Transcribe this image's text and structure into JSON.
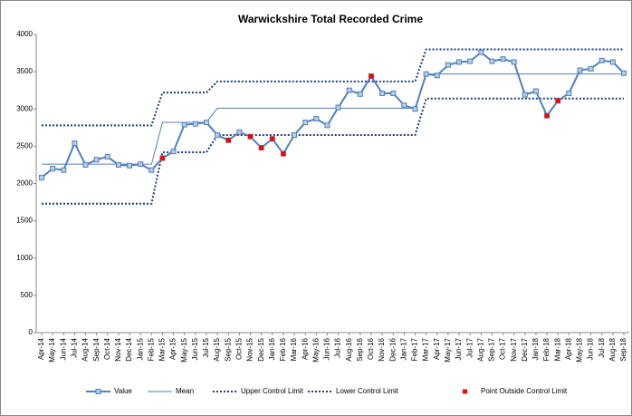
{
  "chart_data": {
    "type": "line",
    "title": "Warwickshire Total Recorded Crime",
    "categories": [
      "Apr-14",
      "May-14",
      "Jun-14",
      "Jul-14",
      "Aug-14",
      "Sep-14",
      "Oct-14",
      "Nov-14",
      "Dec-14",
      "Jan-15",
      "Feb-15",
      "Mar-15",
      "Apr-15",
      "May-15",
      "Jun-15",
      "Jul-15",
      "Aug-15",
      "Sep-15",
      "Oct-15",
      "Nov-15",
      "Dec-15",
      "Jan-16",
      "Feb-16",
      "Mar-16",
      "Apr-16",
      "May-16",
      "Jun-16",
      "Jul-16",
      "Aug-16",
      "Sep-16",
      "Oct-16",
      "Nov-16",
      "Dec-16",
      "Jan-17",
      "Feb-17",
      "Mar-17",
      "Apr-17",
      "May-17",
      "Jun-17",
      "Jul-17",
      "Aug-17",
      "Sep-17",
      "Oct-17",
      "Nov-17",
      "Dec-17",
      "Jan-18",
      "Feb-18",
      "Mar-18",
      "Apr-18",
      "May-18",
      "Jun-18",
      "Jul-18",
      "Aug-18",
      "Sep-18"
    ],
    "series": [
      {
        "name": "Value",
        "color": "#4f81bd",
        "values": [
          2080,
          2200,
          2180,
          2540,
          2250,
          2320,
          2360,
          2250,
          2240,
          2260,
          2180,
          2340,
          2430,
          2790,
          2800,
          2820,
          2650,
          2580,
          2690,
          2630,
          2480,
          2600,
          2400,
          2650,
          2820,
          2870,
          2780,
          3020,
          3250,
          3200,
          3440,
          3210,
          3210,
          3050,
          3000,
          3470,
          3450,
          3590,
          3630,
          3640,
          3760,
          3640,
          3670,
          3630,
          3190,
          3240,
          2910,
          3110,
          3210,
          3520,
          3540,
          3650,
          3630,
          3480
        ]
      },
      {
        "name": "Mean",
        "color": "#4f81bd",
        "values": [
          2260,
          2260,
          2260,
          2260,
          2260,
          2260,
          2260,
          2260,
          2260,
          2260,
          2260,
          2820,
          2820,
          2820,
          2820,
          2820,
          3010,
          3010,
          3010,
          3010,
          3010,
          3010,
          3010,
          3010,
          3010,
          3010,
          3010,
          3010,
          3010,
          3010,
          3010,
          3010,
          3010,
          3010,
          3010,
          3470,
          3470,
          3470,
          3470,
          3470,
          3470,
          3470,
          3470,
          3470,
          3470,
          3470,
          3470,
          3470,
          3470,
          3470,
          3470,
          3470,
          3470,
          3470
        ]
      },
      {
        "name": "Upper Control Limit",
        "color": "#1f3d7a",
        "values": [
          2780,
          2780,
          2780,
          2780,
          2780,
          2780,
          2780,
          2780,
          2780,
          2780,
          2780,
          3220,
          3220,
          3220,
          3220,
          3220,
          3370,
          3370,
          3370,
          3370,
          3370,
          3370,
          3370,
          3370,
          3370,
          3370,
          3370,
          3370,
          3370,
          3370,
          3370,
          3370,
          3370,
          3370,
          3370,
          3800,
          3800,
          3800,
          3800,
          3800,
          3800,
          3800,
          3800,
          3800,
          3800,
          3800,
          3800,
          3800,
          3800,
          3800,
          3800,
          3800,
          3800,
          3800
        ]
      },
      {
        "name": "Lower Control Limit",
        "color": "#1f3d7a",
        "values": [
          1730,
          1730,
          1730,
          1730,
          1730,
          1730,
          1730,
          1730,
          1730,
          1730,
          1730,
          2420,
          2420,
          2420,
          2420,
          2420,
          2650,
          2650,
          2650,
          2650,
          2650,
          2650,
          2650,
          2650,
          2650,
          2650,
          2650,
          2650,
          2650,
          2650,
          2650,
          2650,
          2650,
          2650,
          2650,
          3140,
          3140,
          3140,
          3140,
          3140,
          3140,
          3140,
          3140,
          3140,
          3140,
          3140,
          3140,
          3140,
          3140,
          3140,
          3140,
          3140,
          3140,
          3140
        ]
      },
      {
        "name": "Point Outside Control Limit",
        "color": "#ff0000",
        "values": [
          null,
          null,
          null,
          null,
          null,
          null,
          null,
          null,
          null,
          null,
          null,
          2340,
          null,
          null,
          null,
          null,
          null,
          2580,
          null,
          2630,
          2480,
          2600,
          2400,
          null,
          null,
          null,
          null,
          null,
          null,
          null,
          3440,
          null,
          null,
          null,
          null,
          null,
          null,
          null,
          null,
          null,
          null,
          null,
          null,
          null,
          null,
          null,
          2910,
          3110,
          null,
          null,
          null,
          null,
          null,
          null
        ]
      }
    ],
    "ylim": [
      0,
      4000
    ],
    "yticks": [
      0,
      500,
      1000,
      1500,
      2000,
      2500,
      3000,
      3500,
      4000
    ]
  }
}
